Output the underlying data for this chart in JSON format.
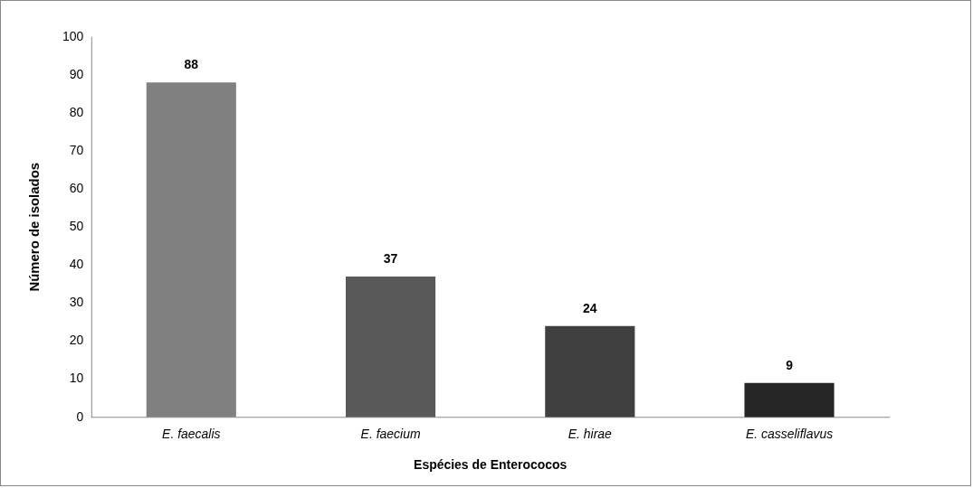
{
  "chart_data": {
    "type": "bar",
    "xlabel": "Espécies de Enterococos",
    "ylabel": "Número de isolados",
    "categories": [
      "E. faecalis",
      "E. faecium",
      "E. hirae",
      "E. casseliflavus"
    ],
    "values": [
      88,
      37,
      24,
      9
    ],
    "colors": [
      "#808080",
      "#595959",
      "#404040",
      "#262626"
    ],
    "ylim": [
      0,
      100
    ],
    "yticks": [
      0,
      10,
      20,
      30,
      40,
      50,
      60,
      70,
      80,
      90,
      100
    ],
    "grid": false,
    "legend": false,
    "data_labels": true
  }
}
